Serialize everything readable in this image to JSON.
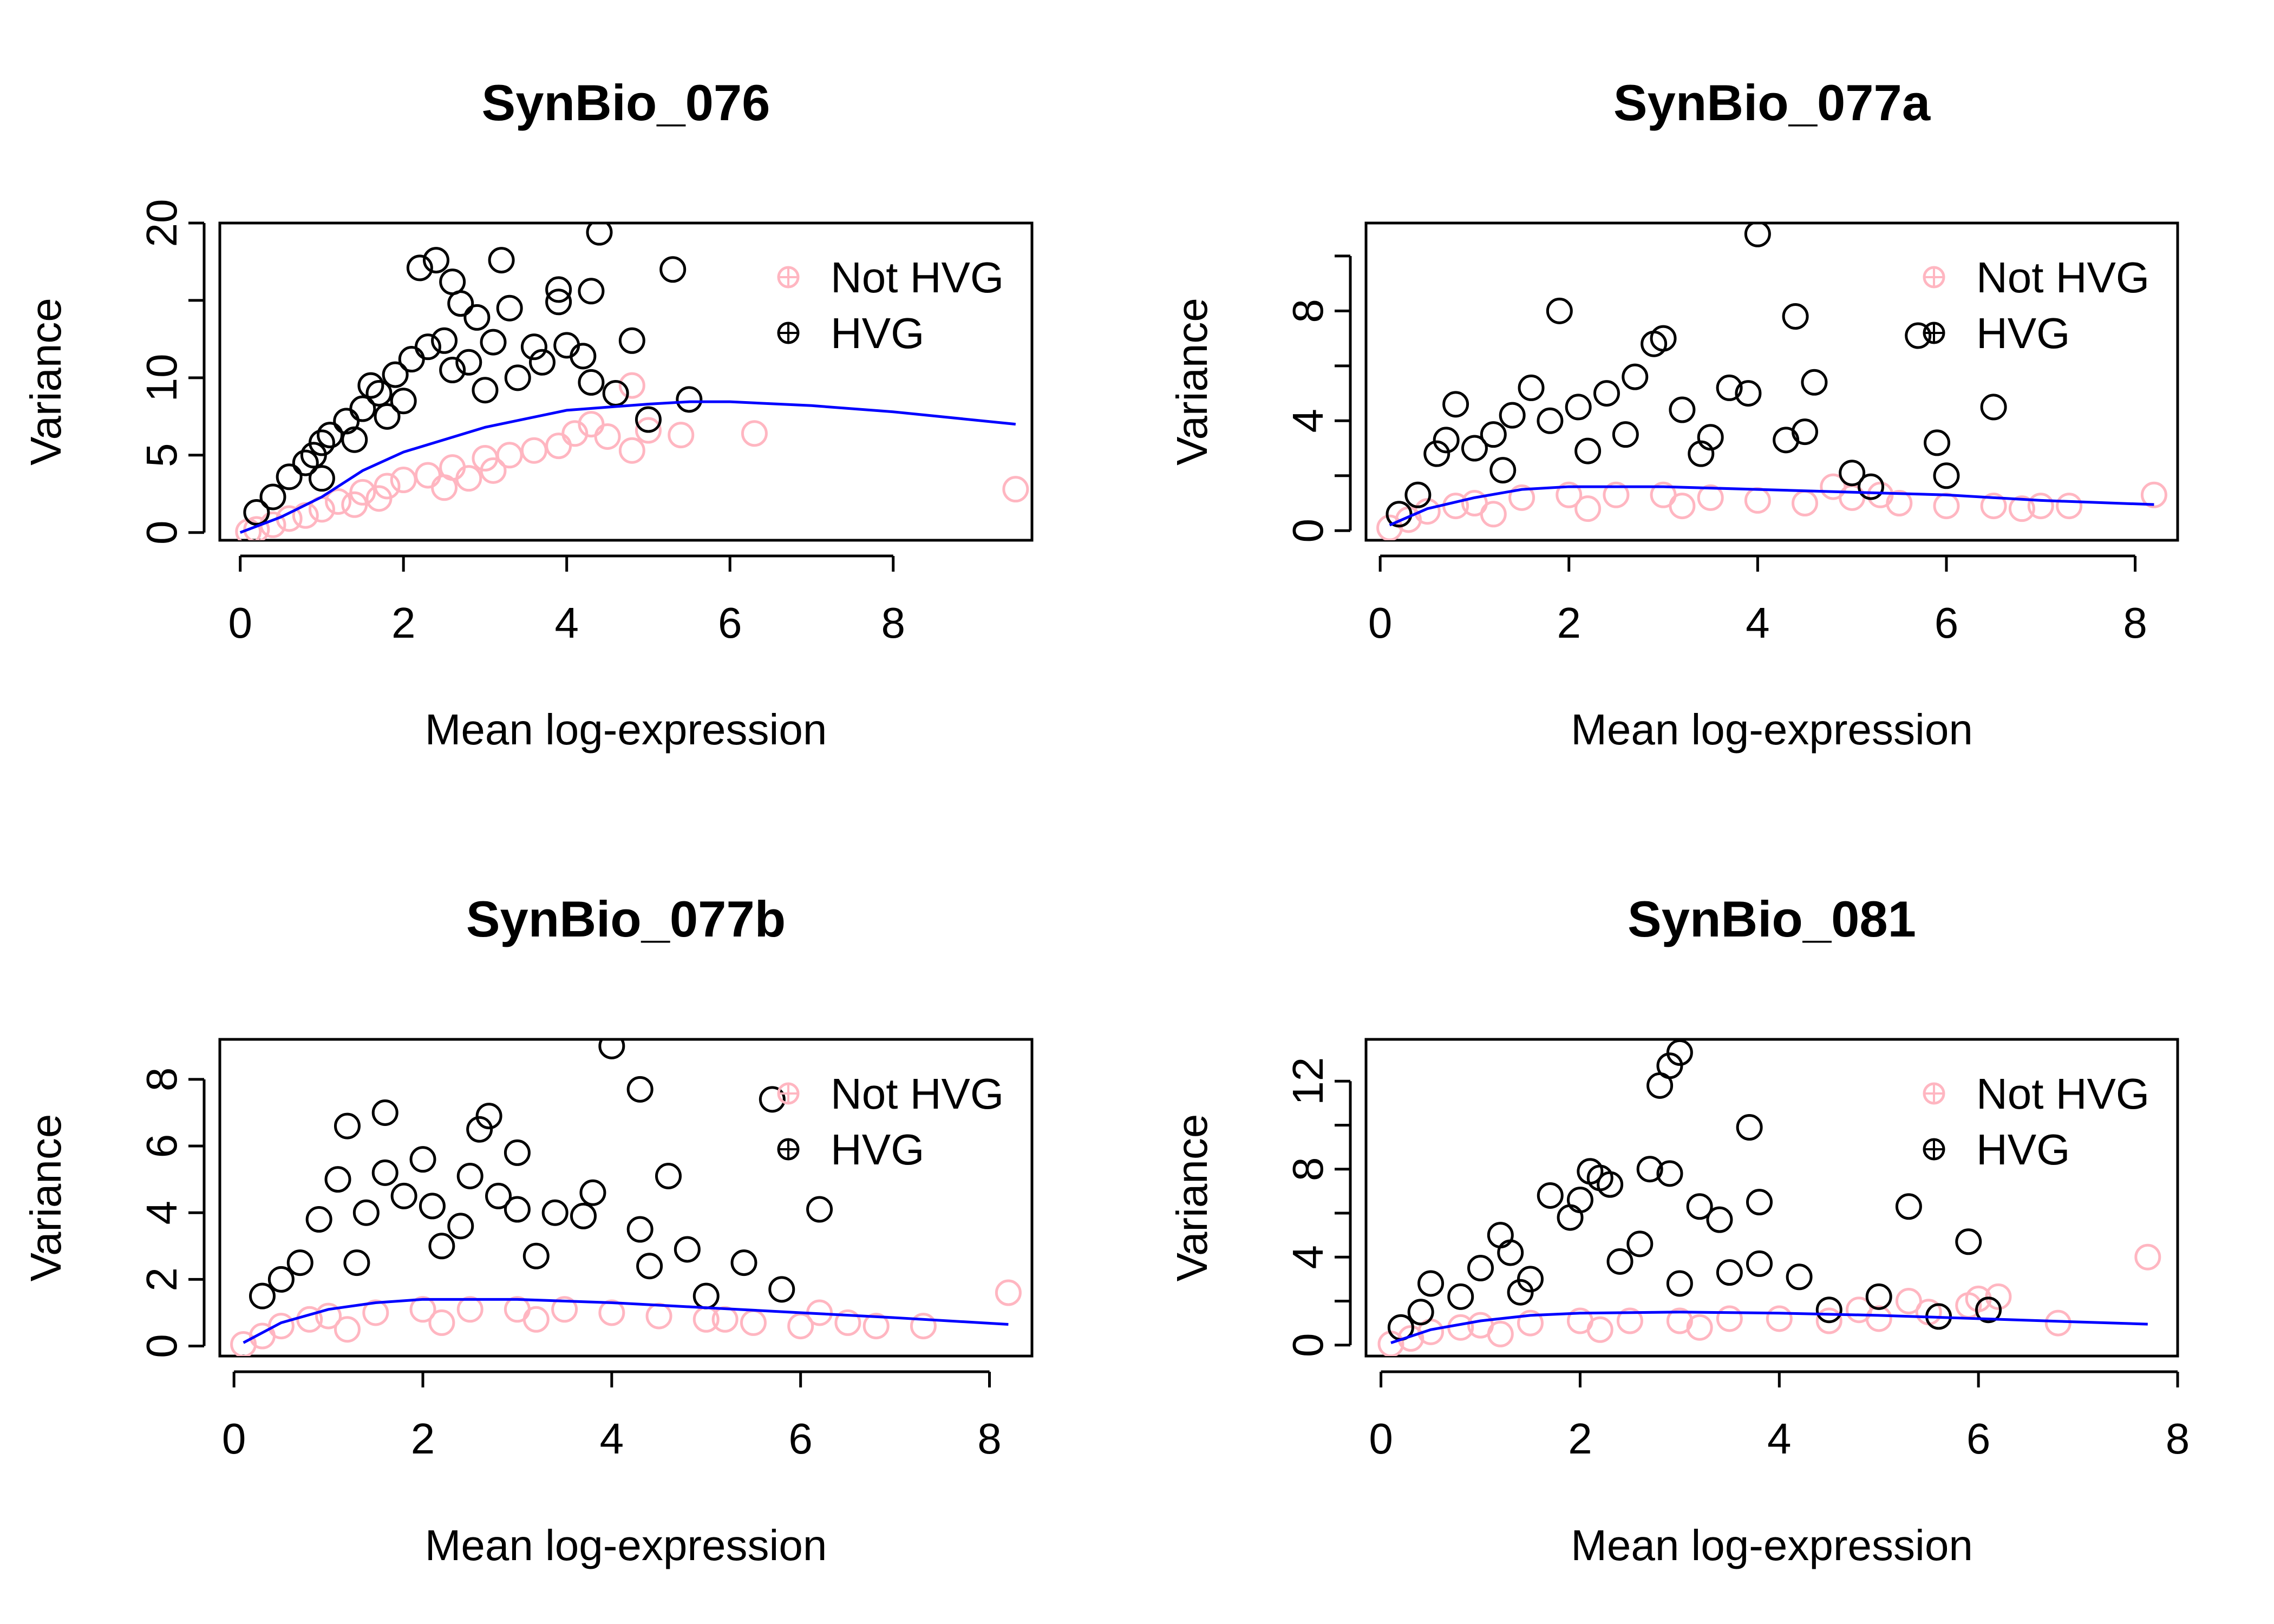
{
  "colors": {
    "not_hvg": "#FFB6C1",
    "hvg": "#000000",
    "trend": "#0000FF"
  },
  "labels": {
    "xlabel": "Mean log-expression",
    "ylabel": "Variance"
  },
  "legend": {
    "not_hvg": "Not HVG",
    "hvg": "HVG",
    "position": "top-right"
  },
  "chart_data": [
    {
      "type": "scatter",
      "title": "SynBio_076",
      "xlabel": "Mean log-expression",
      "ylabel": "Variance",
      "xlim": [
        -0.25,
        9.7
      ],
      "ylim": [
        -0.5,
        20
      ],
      "xticks": [
        0,
        2,
        4,
        6,
        8
      ],
      "yticks": [
        0,
        5,
        10,
        20
      ],
      "ytick_marks": [
        0,
        5,
        10,
        15,
        20
      ],
      "trend": {
        "x": [
          0,
          0.5,
          1,
          1.5,
          2,
          3,
          4,
          5,
          5.5,
          6,
          7,
          8,
          9.5
        ],
        "y": [
          0,
          1,
          2.3,
          4,
          5.2,
          6.8,
          7.9,
          8.3,
          8.45,
          8.45,
          8.2,
          7.8,
          7.0
        ]
      },
      "not_hvg": [
        [
          0.1,
          0.05
        ],
        [
          0.2,
          0.2
        ],
        [
          0.4,
          0.5
        ],
        [
          0.6,
          0.9
        ],
        [
          0.8,
          1.1
        ],
        [
          1.0,
          1.5
        ],
        [
          1.2,
          2.0
        ],
        [
          1.5,
          2.6
        ],
        [
          1.8,
          3.0
        ],
        [
          2.0,
          3.4
        ],
        [
          2.3,
          3.7
        ],
        [
          2.6,
          4.2
        ],
        [
          3.0,
          4.8
        ],
        [
          3.3,
          5.0
        ],
        [
          3.6,
          5.3
        ],
        [
          3.9,
          5.6
        ],
        [
          4.1,
          6.4
        ],
        [
          4.3,
          7.0
        ],
        [
          4.5,
          6.2
        ],
        [
          4.8,
          5.3
        ],
        [
          5.0,
          6.6
        ],
        [
          5.4,
          6.3
        ],
        [
          4.8,
          9.5
        ],
        [
          6.3,
          6.4
        ],
        [
          9.5,
          2.8
        ],
        [
          1.4,
          1.8
        ],
        [
          2.5,
          2.9
        ],
        [
          3.1,
          4.0
        ],
        [
          1.7,
          2.2
        ],
        [
          2.8,
          3.5
        ]
      ],
      "hvg": [
        [
          0.2,
          1.3
        ],
        [
          0.4,
          2.3
        ],
        [
          0.6,
          3.6
        ],
        [
          0.8,
          4.5
        ],
        [
          1.0,
          5.8
        ],
        [
          1.1,
          6.3
        ],
        [
          1.3,
          7.2
        ],
        [
          1.5,
          8.0
        ],
        [
          1.7,
          9.0
        ],
        [
          1.9,
          10.2
        ],
        [
          2.1,
          11.2
        ],
        [
          2.3,
          12.0
        ],
        [
          2.5,
          12.4
        ],
        [
          2.2,
          17.1
        ],
        [
          2.4,
          17.6
        ],
        [
          2.6,
          16.2
        ],
        [
          2.7,
          14.8
        ],
        [
          2.9,
          13.9
        ],
        [
          3.1,
          12.3
        ],
        [
          3.2,
          17.6
        ],
        [
          3.3,
          14.5
        ],
        [
          3.6,
          12.0
        ],
        [
          3.7,
          11.0
        ],
        [
          3.9,
          14.9
        ],
        [
          3.9,
          15.7
        ],
        [
          4.3,
          15.6
        ],
        [
          4.4,
          19.4
        ],
        [
          4.0,
          12.1
        ],
        [
          4.2,
          11.4
        ],
        [
          4.8,
          12.4
        ],
        [
          5.3,
          17.0
        ],
        [
          4.3,
          9.7
        ],
        [
          4.6,
          9.0
        ],
        [
          5.0,
          7.3
        ],
        [
          5.5,
          8.6
        ],
        [
          1.0,
          3.5
        ],
        [
          1.4,
          6.0
        ],
        [
          1.8,
          7.5
        ],
        [
          2.0,
          8.5
        ],
        [
          2.6,
          10.5
        ],
        [
          3.0,
          9.2
        ],
        [
          3.4,
          10.0
        ],
        [
          0.9,
          5.0
        ],
        [
          1.6,
          9.5
        ],
        [
          2.8,
          11.0
        ]
      ]
    },
    {
      "type": "scatter",
      "title": "SynBio_077a",
      "xlabel": "Mean log-expression",
      "ylabel": "Variance",
      "xlim": [
        -0.15,
        8.45
      ],
      "ylim": [
        -0.35,
        11.2
      ],
      "xticks": [
        0,
        2,
        4,
        6,
        8
      ],
      "yticks": [
        0,
        4,
        8
      ],
      "ytick_marks": [
        0,
        2,
        4,
        6,
        8,
        10
      ],
      "trend": {
        "x": [
          0.1,
          0.5,
          1,
          1.5,
          2,
          3,
          4,
          5,
          6,
          7,
          8.2
        ],
        "y": [
          0.2,
          0.8,
          1.2,
          1.5,
          1.6,
          1.6,
          1.5,
          1.4,
          1.3,
          1.1,
          0.95
        ]
      },
      "not_hvg": [
        [
          0.1,
          0.1
        ],
        [
          0.3,
          0.4
        ],
        [
          0.5,
          0.7
        ],
        [
          0.8,
          0.9
        ],
        [
          1.0,
          1.0
        ],
        [
          1.5,
          1.2
        ],
        [
          2.0,
          1.3
        ],
        [
          2.5,
          1.3
        ],
        [
          3.0,
          1.3
        ],
        [
          3.5,
          1.2
        ],
        [
          4.0,
          1.1
        ],
        [
          4.5,
          1.0
        ],
        [
          5.0,
          1.2
        ],
        [
          5.5,
          1.0
        ],
        [
          6.0,
          0.9
        ],
        [
          6.5,
          0.9
        ],
        [
          7.0,
          0.9
        ],
        [
          7.3,
          0.9
        ],
        [
          8.2,
          1.3
        ],
        [
          6.8,
          0.8
        ],
        [
          5.3,
          1.3
        ],
        [
          4.8,
          1.6
        ],
        [
          1.2,
          0.6
        ],
        [
          2.2,
          0.8
        ],
        [
          3.2,
          0.9
        ]
      ],
      "hvg": [
        [
          0.2,
          0.6
        ],
        [
          0.4,
          1.3
        ],
        [
          0.6,
          2.8
        ],
        [
          0.7,
          3.3
        ],
        [
          0.8,
          4.6
        ],
        [
          1.0,
          3.0
        ],
        [
          1.2,
          3.5
        ],
        [
          1.4,
          4.2
        ],
        [
          1.6,
          5.2
        ],
        [
          1.8,
          4.0
        ],
        [
          1.9,
          8.0
        ],
        [
          2.1,
          4.5
        ],
        [
          2.4,
          5.0
        ],
        [
          2.7,
          5.6
        ],
        [
          2.9,
          6.8
        ],
        [
          3.0,
          7.0
        ],
        [
          3.2,
          4.4
        ],
        [
          3.5,
          3.4
        ],
        [
          3.7,
          5.2
        ],
        [
          4.0,
          10.8
        ],
        [
          3.9,
          5.0
        ],
        [
          4.4,
          7.8
        ],
        [
          4.6,
          5.4
        ],
        [
          4.3,
          3.3
        ],
        [
          4.5,
          3.6
        ],
        [
          5.0,
          2.1
        ],
        [
          5.2,
          1.6
        ],
        [
          5.7,
          7.1
        ],
        [
          5.9,
          3.2
        ],
        [
          6.5,
          4.5
        ],
        [
          6.0,
          2.0
        ],
        [
          1.3,
          2.2
        ],
        [
          2.2,
          2.9
        ],
        [
          2.6,
          3.5
        ],
        [
          3.4,
          2.8
        ]
      ]
    },
    {
      "type": "scatter",
      "title": "SynBio_077b",
      "xlabel": "Mean log-expression",
      "ylabel": "Variance",
      "xlim": [
        -0.15,
        8.45
      ],
      "ylim": [
        -0.3,
        9.2
      ],
      "xticks": [
        0,
        2,
        4,
        6,
        8
      ],
      "yticks": [
        0,
        2,
        4,
        6,
        8
      ],
      "ytick_marks": [
        0,
        2,
        4,
        6,
        8
      ],
      "trend": {
        "x": [
          0.1,
          0.5,
          1,
          1.5,
          2,
          3,
          4,
          5,
          6,
          7,
          8.2
        ],
        "y": [
          0.1,
          0.7,
          1.1,
          1.3,
          1.4,
          1.4,
          1.3,
          1.15,
          1.0,
          0.85,
          0.65
        ]
      },
      "not_hvg": [
        [
          0.1,
          0.05
        ],
        [
          0.3,
          0.3
        ],
        [
          0.5,
          0.6
        ],
        [
          0.8,
          0.8
        ],
        [
          1.0,
          0.9
        ],
        [
          1.5,
          1.0
        ],
        [
          2.0,
          1.1
        ],
        [
          2.5,
          1.1
        ],
        [
          3.0,
          1.1
        ],
        [
          3.5,
          1.1
        ],
        [
          4.0,
          1.0
        ],
        [
          4.5,
          0.9
        ],
        [
          5.0,
          0.8
        ],
        [
          5.5,
          0.7
        ],
        [
          6.0,
          0.6
        ],
        [
          6.5,
          0.7
        ],
        [
          6.8,
          0.6
        ],
        [
          7.3,
          0.6
        ],
        [
          8.2,
          1.6
        ],
        [
          6.2,
          1.0
        ],
        [
          5.2,
          0.8
        ],
        [
          1.2,
          0.5
        ],
        [
          2.2,
          0.7
        ],
        [
          3.2,
          0.8
        ]
      ],
      "hvg": [
        [
          0.3,
          1.5
        ],
        [
          0.5,
          2.0
        ],
        [
          0.7,
          2.5
        ],
        [
          0.9,
          3.8
        ],
        [
          1.1,
          5.0
        ],
        [
          1.2,
          6.6
        ],
        [
          1.4,
          4.0
        ],
        [
          1.6,
          7.0
        ],
        [
          1.6,
          5.2
        ],
        [
          1.8,
          4.5
        ],
        [
          2.0,
          5.6
        ],
        [
          2.1,
          4.2
        ],
        [
          2.4,
          3.6
        ],
        [
          2.5,
          5.1
        ],
        [
          2.6,
          6.5
        ],
        [
          2.7,
          6.9
        ],
        [
          2.8,
          4.5
        ],
        [
          3.0,
          5.8
        ],
        [
          3.0,
          4.1
        ],
        [
          3.4,
          4.0
        ],
        [
          3.7,
          3.9
        ],
        [
          3.8,
          4.6
        ],
        [
          4.0,
          9.0
        ],
        [
          4.3,
          7.7
        ],
        [
          4.3,
          3.5
        ],
        [
          4.6,
          5.1
        ],
        [
          4.4,
          2.4
        ],
        [
          4.8,
          2.9
        ],
        [
          5.0,
          1.5
        ],
        [
          5.4,
          2.5
        ],
        [
          5.7,
          7.4
        ],
        [
          5.8,
          1.7
        ],
        [
          6.2,
          4.1
        ],
        [
          1.3,
          2.5
        ],
        [
          2.2,
          3.0
        ],
        [
          3.2,
          2.7
        ]
      ]
    },
    {
      "type": "scatter",
      "title": "SynBio_081",
      "xlabel": "Mean log-expression",
      "ylabel": "Variance",
      "xlim": [
        -0.15,
        8
      ],
      "ylim": [
        -0.5,
        13.9
      ],
      "xticks": [
        0,
        2,
        4,
        6,
        8
      ],
      "yticks": [
        0,
        4,
        8,
        12
      ],
      "ytick_marks": [
        0,
        2,
        4,
        6,
        8,
        10,
        12
      ],
      "trend": {
        "x": [
          0.1,
          0.5,
          1,
          1.5,
          2,
          3,
          4,
          5,
          6,
          7,
          7.7
        ],
        "y": [
          0.1,
          0.7,
          1.1,
          1.35,
          1.45,
          1.5,
          1.45,
          1.35,
          1.2,
          1.05,
          0.95
        ]
      },
      "not_hvg": [
        [
          0.1,
          0.05
        ],
        [
          0.3,
          0.3
        ],
        [
          0.5,
          0.6
        ],
        [
          0.8,
          0.8
        ],
        [
          1.0,
          0.9
        ],
        [
          1.5,
          1.0
        ],
        [
          2.0,
          1.1
        ],
        [
          2.5,
          1.1
        ],
        [
          3.0,
          1.1
        ],
        [
          3.5,
          1.2
        ],
        [
          4.0,
          1.2
        ],
        [
          4.5,
          1.1
        ],
        [
          5.0,
          1.2
        ],
        [
          5.5,
          1.5
        ],
        [
          6.0,
          2.1
        ],
        [
          6.2,
          2.2
        ],
        [
          5.9,
          1.8
        ],
        [
          6.8,
          1.0
        ],
        [
          7.7,
          4.0
        ],
        [
          4.8,
          1.6
        ],
        [
          5.3,
          2.0
        ],
        [
          1.2,
          0.5
        ],
        [
          2.2,
          0.7
        ],
        [
          3.2,
          0.8
        ]
      ],
      "hvg": [
        [
          0.2,
          0.8
        ],
        [
          0.4,
          1.5
        ],
        [
          0.5,
          2.8
        ],
        [
          0.8,
          2.2
        ],
        [
          1.0,
          3.5
        ],
        [
          1.2,
          5.0
        ],
        [
          1.3,
          4.2
        ],
        [
          1.5,
          3.0
        ],
        [
          1.7,
          6.8
        ],
        [
          1.9,
          5.8
        ],
        [
          2.0,
          6.6
        ],
        [
          2.1,
          7.9
        ],
        [
          2.2,
          7.6
        ],
        [
          2.3,
          7.3
        ],
        [
          2.6,
          4.6
        ],
        [
          2.7,
          8.0
        ],
        [
          2.9,
          7.8
        ],
        [
          2.8,
          11.8
        ],
        [
          2.9,
          12.7
        ],
        [
          3.0,
          13.3
        ],
        [
          3.2,
          6.3
        ],
        [
          3.4,
          5.7
        ],
        [
          3.7,
          9.9
        ],
        [
          3.8,
          6.5
        ],
        [
          3.5,
          3.3
        ],
        [
          3.8,
          3.7
        ],
        [
          4.2,
          3.1
        ],
        [
          4.5,
          1.6
        ],
        [
          5.0,
          2.2
        ],
        [
          5.3,
          6.3
        ],
        [
          5.6,
          1.3
        ],
        [
          5.9,
          4.7
        ],
        [
          6.1,
          1.6
        ],
        [
          1.4,
          2.4
        ],
        [
          2.4,
          3.8
        ],
        [
          3.0,
          2.8
        ]
      ]
    }
  ]
}
